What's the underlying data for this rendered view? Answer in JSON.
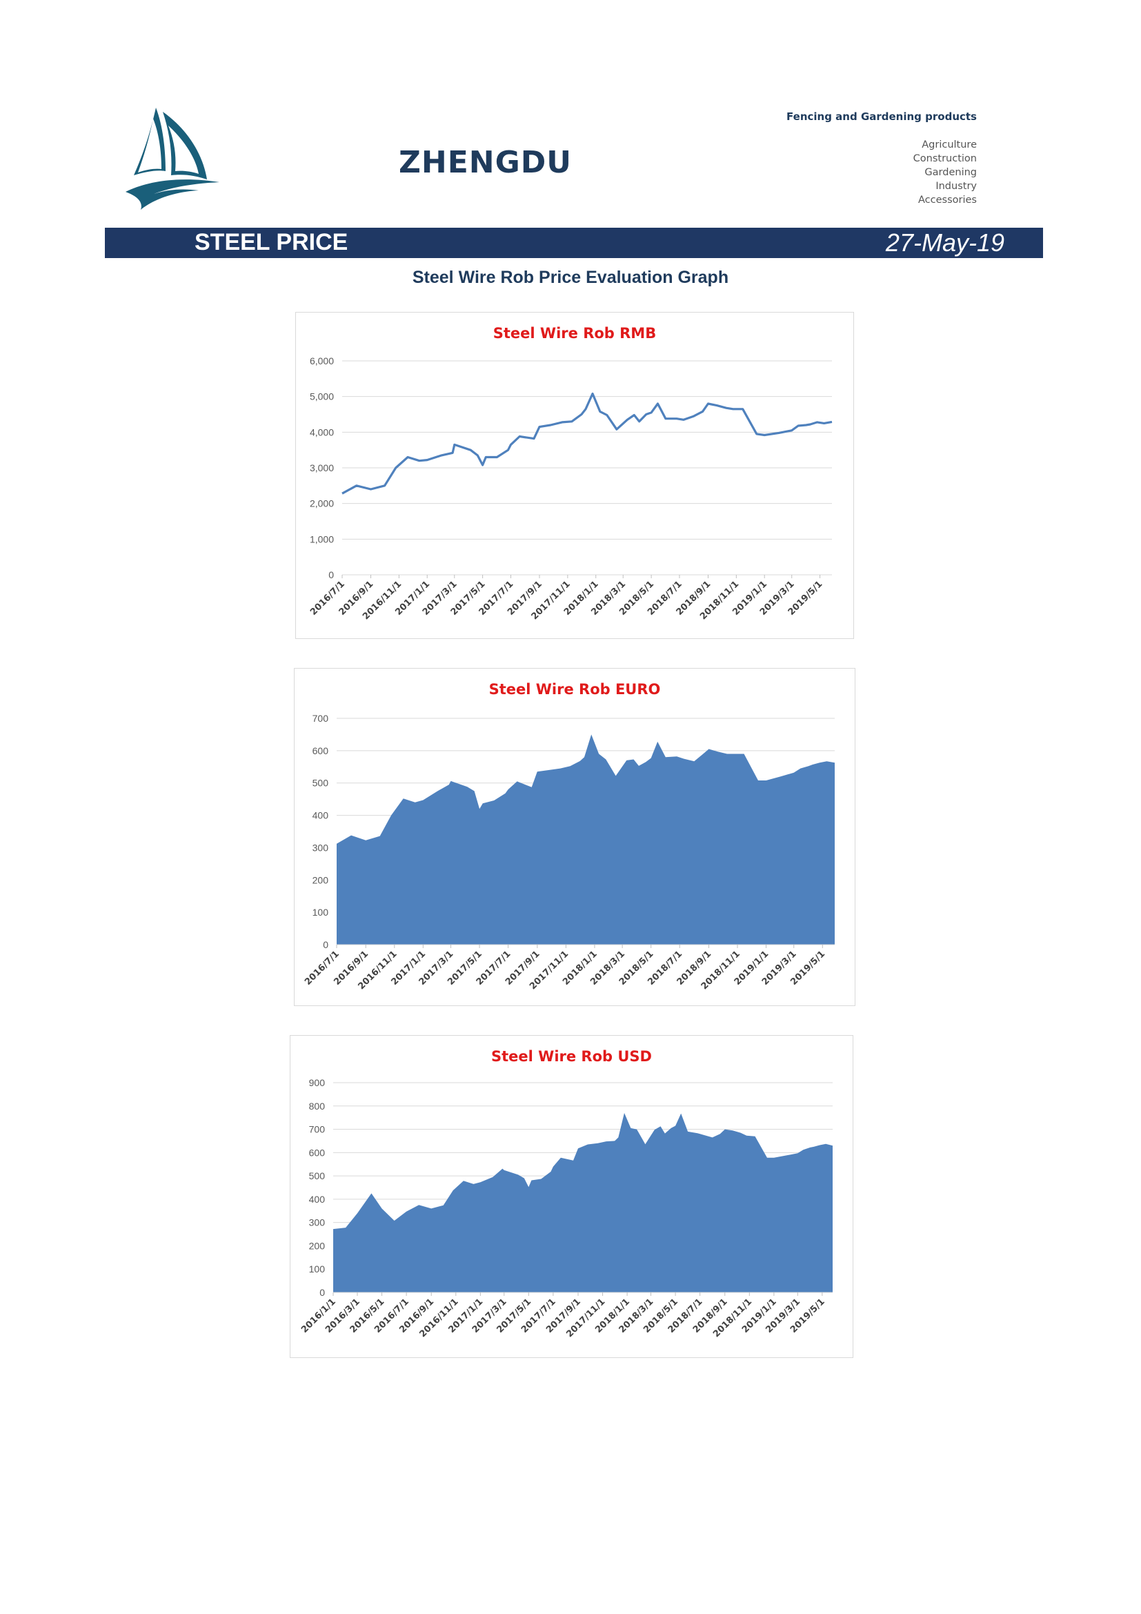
{
  "header": {
    "brand": "ZHENGDU",
    "tagline": "Fencing and Gardening products",
    "sectors": [
      "Agriculture",
      "Construction",
      "Gardening",
      "Industry",
      "Accessories"
    ]
  },
  "banner": {
    "title": "STEEL PRICE",
    "date": "27-May-19"
  },
  "graph_heading": "Steel Wire Rob Price Evaluation Graph",
  "colors": {
    "navy": "#1f3864",
    "brand_text": "#1f3b5c",
    "chart_title": "#e01b1b",
    "series": "#4f81bd",
    "grid": "#d9d9d9"
  },
  "chart_data": [
    {
      "type": "line",
      "title": "Steel Wire Rob RMB",
      "ylim": [
        0,
        6000
      ],
      "yticks": [
        0,
        1000,
        2000,
        3000,
        4000,
        5000,
        6000
      ],
      "ytick_labels": [
        "0",
        "1,000",
        "2,000",
        "3,000",
        "4,000",
        "5,000",
        "6,000"
      ],
      "grid": true,
      "x_tick_labels": [
        "2016/7/1",
        "2016/9/1",
        "2016/11/1",
        "2017/1/1",
        "2017/3/1",
        "2017/5/1",
        "2017/7/1",
        "2017/9/1",
        "2017/11/1",
        "2018/1/1",
        "2018/3/1",
        "2018/5/1",
        "2018/7/1",
        "2018/9/1",
        "2018/11/1",
        "2019/1/1",
        "2019/3/1",
        "2019/5/1"
      ],
      "x_start": "2016/7/1",
      "x_end": "2019/5/27",
      "x": [
        "2016/7/1",
        "2016/8/1",
        "2016/9/1",
        "2016/10/1",
        "2016/10/25",
        "2016/11/20",
        "2016/12/15",
        "2017/1/1",
        "2017/2/1",
        "2017/2/25",
        "2017/3/1",
        "2017/4/5",
        "2017/4/20",
        "2017/5/1",
        "2017/5/8",
        "2017/6/1",
        "2017/6/25",
        "2017/7/1",
        "2017/7/20",
        "2017/8/20",
        "2017/9/1",
        "2017/9/25",
        "2017/10/20",
        "2017/11/10",
        "2017/12/1",
        "2017/12/10",
        "2017/12/25",
        "2018/1/10",
        "2018/1/25",
        "2018/2/15",
        "2018/3/10",
        "2018/3/25",
        "2018/4/5",
        "2018/4/20",
        "2018/5/1",
        "2018/5/15",
        "2018/6/1",
        "2018/6/25",
        "2018/7/10",
        "2018/8/1",
        "2018/8/20",
        "2018/9/1",
        "2018/9/20",
        "2018/10/10",
        "2018/10/25",
        "2018/11/15",
        "2018/12/15",
        "2019/1/1",
        "2019/2/1",
        "2019/3/1",
        "2019/3/15",
        "2019/4/1",
        "2019/4/10",
        "2019/4/25",
        "2019/5/10",
        "2019/5/27"
      ],
      "series": [
        {
          "values": [
            2280,
            2500,
            2400,
            2500,
            3000,
            3300,
            3200,
            3220,
            3350,
            3420,
            3650,
            3500,
            3350,
            3080,
            3300,
            3300,
            3500,
            3650,
            3880,
            3820,
            4150,
            4200,
            4280,
            4300,
            4500,
            4650,
            5080,
            4580,
            4480,
            4080,
            4350,
            4480,
            4300,
            4500,
            4550,
            4800,
            4380,
            4380,
            4350,
            4450,
            4580,
            4800,
            4750,
            4680,
            4650,
            4650,
            3950,
            3920,
            3980,
            4050,
            4180,
            4200,
            4220,
            4280,
            4250,
            4290
          ]
        }
      ]
    },
    {
      "type": "area",
      "title": "Steel Wire Rob EURO",
      "ylim": [
        0,
        700
      ],
      "yticks": [
        0,
        100,
        200,
        300,
        400,
        500,
        600,
        700
      ],
      "grid": true,
      "x_tick_labels": [
        "2016/7/1",
        "2016/9/1",
        "2016/11/1",
        "2017/1/1",
        "2017/3/1",
        "2017/5/1",
        "2017/7/1",
        "2017/9/1",
        "2017/11/1",
        "2018/1/1",
        "2018/3/1",
        "2018/5/1",
        "2018/7/1",
        "2018/9/1",
        "2018/11/1",
        "2019/1/1",
        "2019/3/1",
        "2019/5/1"
      ],
      "x_start": "2016/7/1",
      "x_end": "2019/5/27",
      "x": [
        "2016/7/1",
        "2016/8/1",
        "2016/9/1",
        "2016/10/1",
        "2016/10/25",
        "2016/11/20",
        "2016/12/15",
        "2017/1/1",
        "2017/2/1",
        "2017/2/25",
        "2017/3/1",
        "2017/4/5",
        "2017/4/20",
        "2017/5/1",
        "2017/5/8",
        "2017/6/1",
        "2017/6/25",
        "2017/7/1",
        "2017/7/20",
        "2017/8/20",
        "2017/9/1",
        "2017/9/25",
        "2017/10/20",
        "2017/11/10",
        "2017/12/1",
        "2017/12/10",
        "2017/12/25",
        "2018/1/10",
        "2018/1/25",
        "2018/2/15",
        "2018/3/10",
        "2018/3/25",
        "2018/4/5",
        "2018/4/20",
        "2018/5/1",
        "2018/5/15",
        "2018/6/1",
        "2018/6/25",
        "2018/7/10",
        "2018/8/1",
        "2018/8/20",
        "2018/9/1",
        "2018/9/20",
        "2018/10/10",
        "2018/10/25",
        "2018/11/15",
        "2018/12/15",
        "2019/1/1",
        "2019/2/1",
        "2019/3/1",
        "2019/3/15",
        "2019/4/1",
        "2019/4/10",
        "2019/4/25",
        "2019/5/10",
        "2019/5/27"
      ],
      "series": [
        {
          "values": [
            312,
            338,
            323,
            336,
            400,
            452,
            440,
            447,
            475,
            495,
            506,
            488,
            475,
            420,
            437,
            446,
            468,
            480,
            505,
            487,
            535,
            540,
            545,
            552,
            568,
            580,
            650,
            590,
            573,
            522,
            570,
            573,
            553,
            565,
            577,
            628,
            580,
            582,
            575,
            567,
            590,
            605,
            597,
            590,
            590,
            590,
            508,
            508,
            520,
            532,
            545,
            552,
            557,
            563,
            567,
            563
          ]
        }
      ]
    },
    {
      "type": "area",
      "title": "Steel Wire Rob USD",
      "ylim": [
        0,
        900
      ],
      "yticks": [
        0,
        100,
        200,
        300,
        400,
        500,
        600,
        700,
        800,
        900
      ],
      "grid": true,
      "x_tick_labels": [
        "2016/1/1",
        "2016/3/1",
        "2016/5/1",
        "2016/7/1",
        "2016/9/1",
        "2016/11/1",
        "2017/1/1",
        "2017/3/1",
        "2017/5/1",
        "2017/7/1",
        "2017/9/1",
        "2017/11/1",
        "2018/1/1",
        "2018/3/1",
        "2018/5/1",
        "2018/7/1",
        "2018/9/1",
        "2018/11/1",
        "2019/1/1",
        "2019/3/1",
        "2019/5/1"
      ],
      "x_start": "2016/1/1",
      "x_end": "2019/5/27",
      "x": [
        "2016/1/1",
        "2016/2/1",
        "2016/3/1",
        "2016/4/5",
        "2016/5/1",
        "2016/6/1",
        "2016/7/1",
        "2016/8/1",
        "2016/9/1",
        "2016/10/1",
        "2016/10/25",
        "2016/11/20",
        "2016/12/15",
        "2017/1/1",
        "2017/2/1",
        "2017/2/25",
        "2017/3/1",
        "2017/4/5",
        "2017/4/20",
        "2017/5/1",
        "2017/5/8",
        "2017/6/1",
        "2017/6/25",
        "2017/7/1",
        "2017/7/20",
        "2017/8/20",
        "2017/9/1",
        "2017/9/25",
        "2017/10/20",
        "2017/11/10",
        "2017/12/1",
        "2017/12/10",
        "2017/12/25",
        "2018/1/10",
        "2018/1/25",
        "2018/2/15",
        "2018/3/10",
        "2018/3/25",
        "2018/4/5",
        "2018/4/20",
        "2018/5/1",
        "2018/5/15",
        "2018/6/1",
        "2018/6/25",
        "2018/7/10",
        "2018/8/1",
        "2018/8/20",
        "2018/9/1",
        "2018/9/20",
        "2018/10/10",
        "2018/10/25",
        "2018/11/15",
        "2018/12/15",
        "2019/1/1",
        "2019/2/1",
        "2019/3/1",
        "2019/3/15",
        "2019/4/1",
        "2019/4/10",
        "2019/4/25",
        "2019/5/10",
        "2019/5/27"
      ],
      "series": [
        {
          "values": [
            272,
            278,
            340,
            425,
            360,
            308,
            347,
            375,
            360,
            374,
            438,
            479,
            465,
            473,
            495,
            531,
            525,
            505,
            490,
            452,
            481,
            487,
            518,
            540,
            578,
            566,
            618,
            635,
            640,
            648,
            650,
            665,
            770,
            705,
            700,
            636,
            698,
            713,
            682,
            705,
            715,
            768,
            690,
            683,
            676,
            665,
            680,
            700,
            695,
            685,
            673,
            670,
            578,
            578,
            588,
            597,
            612,
            622,
            625,
            632,
            637,
            630
          ]
        }
      ]
    }
  ]
}
